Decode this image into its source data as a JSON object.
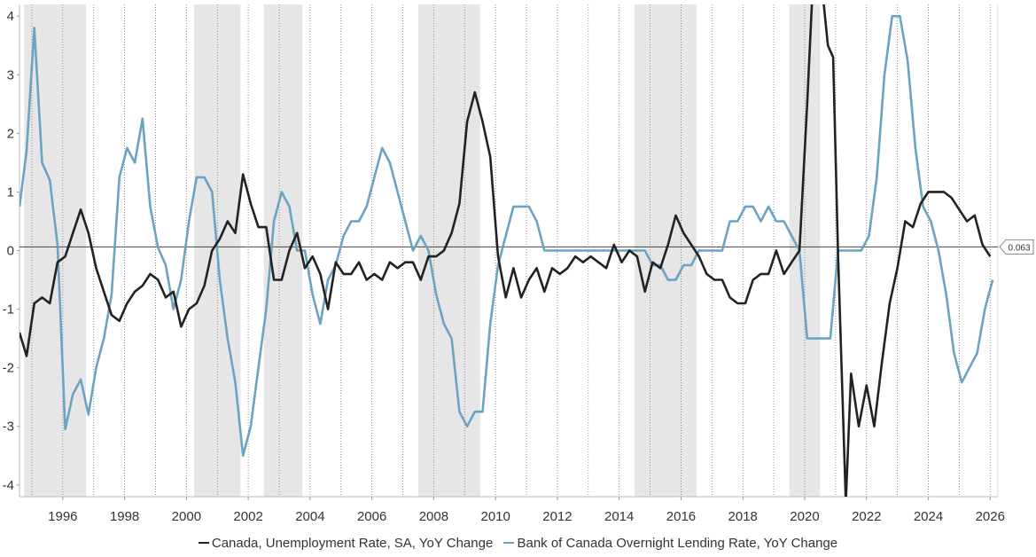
{
  "chart_data": {
    "type": "line",
    "xlim": [
      1994.6,
      2026.25
    ],
    "ylim": [
      -4.2,
      4.2
    ],
    "yticks": [
      -4,
      -3,
      -2,
      -1,
      0,
      1,
      2,
      3,
      4
    ],
    "ytick_labels": [
      "-4",
      "-3",
      "-2",
      "-1",
      "0",
      "1",
      "2",
      "3",
      "4"
    ],
    "xticks": [
      1996,
      1998,
      2000,
      2002,
      2004,
      2006,
      2008,
      2010,
      2012,
      2014,
      2016,
      2018,
      2020,
      2022,
      2024,
      2026
    ],
    "xtick_labels": [
      "1996",
      "1998",
      "2000",
      "2002",
      "2004",
      "2006",
      "2008",
      "2010",
      "2012",
      "2014",
      "2016",
      "2018",
      "2020",
      "2022",
      "2024",
      "2026"
    ],
    "grid": "vertical dotted",
    "legend_position": "bottom-center",
    "shaded_periods": [
      [
        1994.75,
        1996.75
      ],
      [
        2000.25,
        2001.75
      ],
      [
        2002.5,
        2003.75
      ],
      [
        2007.5,
        2009.5
      ],
      [
        2014.5,
        2016.5
      ],
      [
        2019.5,
        2020.5
      ]
    ],
    "last_value_label": "0.063",
    "last_value": 0.063,
    "series": [
      {
        "name": "Canada, Unemployment Rate, SA, YoY Change",
        "color": "#222222",
        "points": [
          [
            1994.6,
            -1.4
          ],
          [
            1994.83,
            -1.8
          ],
          [
            1995.08,
            -0.9
          ],
          [
            1995.33,
            -0.8
          ],
          [
            1995.58,
            -0.9
          ],
          [
            1995.83,
            -0.2
          ],
          [
            1996.08,
            -0.1
          ],
          [
            1996.33,
            0.3
          ],
          [
            1996.58,
            0.7
          ],
          [
            1996.83,
            0.3
          ],
          [
            1997.08,
            -0.3
          ],
          [
            1997.33,
            -0.7
          ],
          [
            1997.58,
            -1.1
          ],
          [
            1997.83,
            -1.2
          ],
          [
            1998.08,
            -0.9
          ],
          [
            1998.33,
            -0.7
          ],
          [
            1998.58,
            -0.6
          ],
          [
            1998.83,
            -0.4
          ],
          [
            1999.08,
            -0.5
          ],
          [
            1999.33,
            -0.8
          ],
          [
            1999.58,
            -0.7
          ],
          [
            1999.83,
            -1.3
          ],
          [
            2000.08,
            -1.0
          ],
          [
            2000.33,
            -0.9
          ],
          [
            2000.58,
            -0.6
          ],
          [
            2000.83,
            0.0
          ],
          [
            2001.08,
            0.2
          ],
          [
            2001.33,
            0.5
          ],
          [
            2001.58,
            0.3
          ],
          [
            2001.83,
            1.3
          ],
          [
            2002.08,
            0.8
          ],
          [
            2002.33,
            0.4
          ],
          [
            2002.58,
            0.4
          ],
          [
            2002.83,
            -0.5
          ],
          [
            2003.08,
            -0.5
          ],
          [
            2003.33,
            0.0
          ],
          [
            2003.58,
            0.3
          ],
          [
            2003.83,
            -0.3
          ],
          [
            2004.08,
            -0.1
          ],
          [
            2004.33,
            -0.4
          ],
          [
            2004.58,
            -1.0
          ],
          [
            2004.83,
            -0.2
          ],
          [
            2005.08,
            -0.4
          ],
          [
            2005.33,
            -0.4
          ],
          [
            2005.58,
            -0.2
          ],
          [
            2005.83,
            -0.5
          ],
          [
            2006.08,
            -0.4
          ],
          [
            2006.33,
            -0.5
          ],
          [
            2006.58,
            -0.2
          ],
          [
            2006.83,
            -0.3
          ],
          [
            2007.08,
            -0.2
          ],
          [
            2007.33,
            -0.2
          ],
          [
            2007.58,
            -0.5
          ],
          [
            2007.83,
            -0.1
          ],
          [
            2008.08,
            -0.1
          ],
          [
            2008.33,
            0.0
          ],
          [
            2008.58,
            0.3
          ],
          [
            2008.83,
            0.8
          ],
          [
            2009.08,
            2.2
          ],
          [
            2009.33,
            2.7
          ],
          [
            2009.58,
            2.2
          ],
          [
            2009.83,
            1.6
          ],
          [
            2010.08,
            -0.1
          ],
          [
            2010.33,
            -0.8
          ],
          [
            2010.58,
            -0.3
          ],
          [
            2010.83,
            -0.8
          ],
          [
            2011.08,
            -0.5
          ],
          [
            2011.33,
            -0.3
          ],
          [
            2011.58,
            -0.7
          ],
          [
            2011.83,
            -0.3
          ],
          [
            2012.08,
            -0.4
          ],
          [
            2012.33,
            -0.3
          ],
          [
            2012.58,
            -0.1
          ],
          [
            2012.83,
            -0.2
          ],
          [
            2013.08,
            -0.1
          ],
          [
            2013.33,
            -0.2
          ],
          [
            2013.58,
            -0.3
          ],
          [
            2013.83,
            0.1
          ],
          [
            2014.08,
            -0.2
          ],
          [
            2014.33,
            0.0
          ],
          [
            2014.58,
            -0.1
          ],
          [
            2014.83,
            -0.7
          ],
          [
            2015.08,
            -0.2
          ],
          [
            2015.33,
            -0.3
          ],
          [
            2015.58,
            0.1
          ],
          [
            2015.83,
            0.6
          ],
          [
            2016.08,
            0.3
          ],
          [
            2016.33,
            0.1
          ],
          [
            2016.58,
            -0.1
          ],
          [
            2016.83,
            -0.4
          ],
          [
            2017.08,
            -0.5
          ],
          [
            2017.33,
            -0.5
          ],
          [
            2017.58,
            -0.8
          ],
          [
            2017.83,
            -0.9
          ],
          [
            2018.08,
            -0.9
          ],
          [
            2018.33,
            -0.5
          ],
          [
            2018.58,
            -0.4
          ],
          [
            2018.83,
            -0.4
          ],
          [
            2019.08,
            0.0
          ],
          [
            2019.33,
            -0.4
          ],
          [
            2019.58,
            -0.2
          ],
          [
            2019.83,
            0.0
          ],
          [
            2020.08,
            2.5
          ],
          [
            2020.25,
            4.4
          ],
          [
            2020.58,
            4.4
          ],
          [
            2020.75,
            3.5
          ],
          [
            2020.92,
            3.3
          ],
          [
            2021.08,
            -0.1
          ],
          [
            2021.33,
            -4.3
          ],
          [
            2021.5,
            -2.1
          ],
          [
            2021.75,
            -3.0
          ],
          [
            2022.0,
            -2.3
          ],
          [
            2022.25,
            -3.0
          ],
          [
            2022.5,
            -1.9
          ],
          [
            2022.75,
            -0.9
          ],
          [
            2023.0,
            -0.3
          ],
          [
            2023.25,
            0.5
          ],
          [
            2023.5,
            0.4
          ],
          [
            2023.75,
            0.8
          ],
          [
            2024.0,
            1.0
          ],
          [
            2024.25,
            1.0
          ],
          [
            2024.5,
            1.0
          ],
          [
            2024.75,
            0.9
          ],
          [
            2025.0,
            0.7
          ],
          [
            2025.25,
            0.5
          ],
          [
            2025.5,
            0.6
          ],
          [
            2025.75,
            0.1
          ],
          [
            2026.0,
            -0.1
          ]
        ]
      },
      {
        "name": "Bank of Canada Overnight Lending Rate, YoY Change",
        "color": "#6ba3c2",
        "points": [
          [
            1994.6,
            0.75
          ],
          [
            1994.83,
            1.7
          ],
          [
            1995.08,
            3.8
          ],
          [
            1995.33,
            1.5
          ],
          [
            1995.58,
            1.2
          ],
          [
            1995.83,
            0.1
          ],
          [
            1996.08,
            -3.05
          ],
          [
            1996.33,
            -2.45
          ],
          [
            1996.58,
            -2.2
          ],
          [
            1996.83,
            -2.8
          ],
          [
            1997.08,
            -2.0
          ],
          [
            1997.33,
            -1.5
          ],
          [
            1997.58,
            -0.75
          ],
          [
            1997.83,
            1.25
          ],
          [
            1998.08,
            1.75
          ],
          [
            1998.33,
            1.5
          ],
          [
            1998.58,
            2.25
          ],
          [
            1998.83,
            0.75
          ],
          [
            1999.08,
            0.05
          ],
          [
            1999.33,
            -0.25
          ],
          [
            1999.58,
            -1.0
          ],
          [
            1999.83,
            -0.5
          ],
          [
            2000.08,
            0.5
          ],
          [
            2000.33,
            1.25
          ],
          [
            2000.58,
            1.25
          ],
          [
            2000.83,
            1.0
          ],
          [
            2001.08,
            -0.5
          ],
          [
            2001.33,
            -1.5
          ],
          [
            2001.58,
            -2.25
          ],
          [
            2001.83,
            -3.5
          ],
          [
            2002.08,
            -3.0
          ],
          [
            2002.33,
            -2.0
          ],
          [
            2002.58,
            -1.0
          ],
          [
            2002.83,
            0.5
          ],
          [
            2003.08,
            1.0
          ],
          [
            2003.33,
            0.75
          ],
          [
            2003.58,
            0.0
          ],
          [
            2003.83,
            0.0
          ],
          [
            2004.08,
            -0.75
          ],
          [
            2004.33,
            -1.25
          ],
          [
            2004.58,
            -0.5
          ],
          [
            2004.83,
            -0.25
          ],
          [
            2005.08,
            0.25
          ],
          [
            2005.33,
            0.5
          ],
          [
            2005.58,
            0.5
          ],
          [
            2005.83,
            0.75
          ],
          [
            2006.08,
            1.25
          ],
          [
            2006.33,
            1.75
          ],
          [
            2006.58,
            1.5
          ],
          [
            2006.83,
            1.0
          ],
          [
            2007.08,
            0.5
          ],
          [
            2007.33,
            0.0
          ],
          [
            2007.58,
            0.25
          ],
          [
            2007.83,
            0.0
          ],
          [
            2008.08,
            -0.75
          ],
          [
            2008.33,
            -1.25
          ],
          [
            2008.58,
            -1.5
          ],
          [
            2008.83,
            -2.75
          ],
          [
            2009.08,
            -3.0
          ],
          [
            2009.33,
            -2.75
          ],
          [
            2009.58,
            -2.75
          ],
          [
            2009.83,
            -1.25
          ],
          [
            2010.08,
            -0.25
          ],
          [
            2010.33,
            0.25
          ],
          [
            2010.58,
            0.75
          ],
          [
            2010.83,
            0.75
          ],
          [
            2011.08,
            0.75
          ],
          [
            2011.33,
            0.5
          ],
          [
            2011.58,
            0.0
          ],
          [
            2011.83,
            0.0
          ],
          [
            2012.08,
            0.0
          ],
          [
            2012.33,
            0.0
          ],
          [
            2012.58,
            0.0
          ],
          [
            2012.83,
            0.0
          ],
          [
            2013.08,
            0.0
          ],
          [
            2013.33,
            0.0
          ],
          [
            2013.58,
            0.0
          ],
          [
            2013.83,
            0.0
          ],
          [
            2014.08,
            0.0
          ],
          [
            2014.33,
            0.0
          ],
          [
            2014.58,
            0.0
          ],
          [
            2014.83,
            0.0
          ],
          [
            2015.08,
            -0.25
          ],
          [
            2015.33,
            -0.25
          ],
          [
            2015.58,
            -0.5
          ],
          [
            2015.83,
            -0.5
          ],
          [
            2016.08,
            -0.25
          ],
          [
            2016.33,
            -0.25
          ],
          [
            2016.58,
            0.0
          ],
          [
            2016.83,
            0.0
          ],
          [
            2017.08,
            0.0
          ],
          [
            2017.33,
            0.0
          ],
          [
            2017.58,
            0.5
          ],
          [
            2017.83,
            0.5
          ],
          [
            2018.08,
            0.75
          ],
          [
            2018.33,
            0.75
          ],
          [
            2018.58,
            0.5
          ],
          [
            2018.83,
            0.75
          ],
          [
            2019.08,
            0.5
          ],
          [
            2019.33,
            0.5
          ],
          [
            2019.58,
            0.25
          ],
          [
            2019.83,
            0.0
          ],
          [
            2020.08,
            -1.5
          ],
          [
            2020.33,
            -1.5
          ],
          [
            2020.58,
            -1.5
          ],
          [
            2020.83,
            -1.5
          ],
          [
            2021.08,
            0.0
          ],
          [
            2021.33,
            0.0
          ],
          [
            2021.58,
            0.0
          ],
          [
            2021.83,
            0.0
          ],
          [
            2022.08,
            0.25
          ],
          [
            2022.33,
            1.25
          ],
          [
            2022.58,
            3.0
          ],
          [
            2022.83,
            4.0
          ],
          [
            2023.08,
            4.0
          ],
          [
            2023.33,
            3.25
          ],
          [
            2023.58,
            1.75
          ],
          [
            2023.83,
            0.75
          ],
          [
            2024.08,
            0.5
          ],
          [
            2024.33,
            0.0
          ],
          [
            2024.58,
            -0.75
          ],
          [
            2024.83,
            -1.75
          ],
          [
            2025.08,
            -2.25
          ],
          [
            2025.33,
            -2.0
          ],
          [
            2025.58,
            -1.75
          ],
          [
            2025.83,
            -1.0
          ],
          [
            2026.08,
            -0.5
          ]
        ]
      }
    ]
  }
}
